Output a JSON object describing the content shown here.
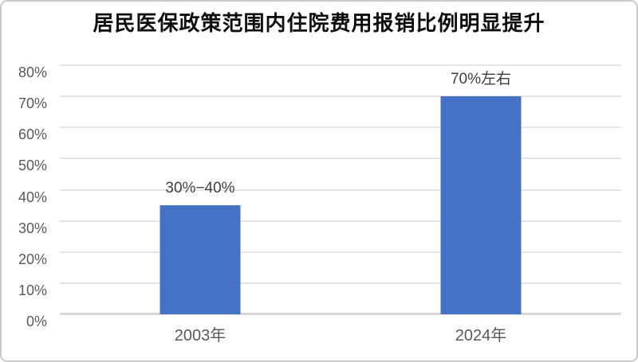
{
  "chart_data": {
    "type": "bar",
    "title": "居民医保政策范围内住院费用报销比例明显提升",
    "categories": [
      "2003年",
      "2024年"
    ],
    "values": [
      35,
      70
    ],
    "bar_labels": [
      "30%−40%",
      "70%左右"
    ],
    "xlabel": "",
    "ylabel": "",
    "ylim": [
      0,
      80
    ],
    "ytick_values": [
      0,
      10,
      20,
      30,
      40,
      50,
      60,
      70,
      80
    ],
    "ytick_labels": [
      "0%",
      "10%",
      "20%",
      "30%",
      "40%",
      "50%",
      "60%",
      "70%",
      "80%"
    ],
    "grid": true,
    "legend": "none",
    "colors": {
      "bar_fill": "#4472c4",
      "gridline": "#e5e5e5",
      "axis_line": "#d9d9d9",
      "tick_text": "#595959",
      "bar_label_text": "#3f3f3f",
      "title_text": "#0d0d0d",
      "figure_border": "#c9c9c9"
    }
  }
}
